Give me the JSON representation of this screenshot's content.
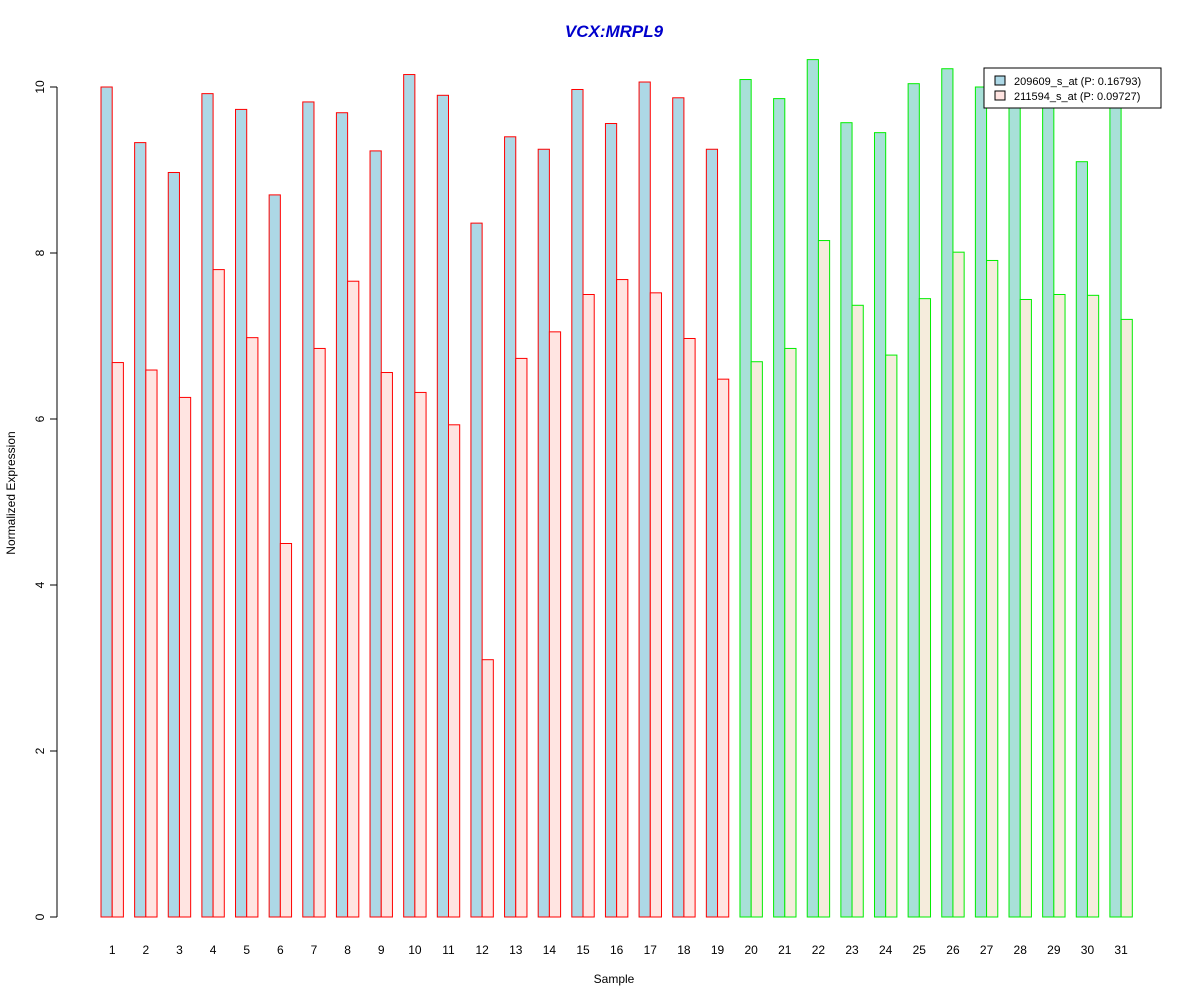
{
  "chart_data": {
    "type": "bar",
    "title": "VCX:MRPL9",
    "xlabel": "Sample",
    "ylabel": "Normalized Expression",
    "ylim": [
      0,
      10
    ],
    "y_ticks": [
      "0",
      "2",
      "4",
      "6",
      "8",
      "10"
    ],
    "grid": false,
    "legend_position": "top-right",
    "categories": [
      "1",
      "2",
      "3",
      "4",
      "5",
      "6",
      "7",
      "8",
      "9",
      "10",
      "11",
      "12",
      "13",
      "14",
      "15",
      "16",
      "17",
      "18",
      "19",
      "20",
      "21",
      "22",
      "23",
      "24",
      "25",
      "26",
      "27",
      "28",
      "29",
      "30",
      "31"
    ],
    "series": [
      {
        "name": "209609_s_at (P: 0.16793)",
        "values": [
          10.0,
          9.33,
          8.97,
          9.92,
          9.73,
          8.7,
          9.82,
          9.69,
          9.23,
          10.15,
          9.9,
          8.36,
          9.4,
          9.25,
          9.97,
          9.56,
          10.06,
          9.87,
          9.25,
          10.09,
          9.86,
          10.33,
          9.57,
          9.45,
          10.04,
          10.22,
          10.0,
          9.96,
          9.8,
          9.1,
          9.9
        ]
      },
      {
        "name": "211594_s_at (P: 0.09727)",
        "values": [
          6.68,
          6.59,
          6.26,
          7.8,
          6.98,
          4.5,
          6.85,
          7.66,
          6.56,
          6.32,
          5.93,
          3.1,
          6.73,
          7.05,
          7.5,
          7.68,
          7.52,
          6.97,
          6.48,
          6.69,
          6.85,
          8.15,
          7.37,
          6.77,
          7.45,
          8.01,
          7.91,
          7.44,
          7.5,
          7.49,
          7.2
        ]
      }
    ],
    "group_split_after": 19
  },
  "colors": {
    "title": "#0000cc",
    "series1_fill_group1": "#add8e6",
    "series2_fill_group1": "#ffe4e1",
    "series1_fill_group2": "#a8e0d8",
    "series2_fill_group2": "#f5ecdc",
    "border_group1": "#ff0000",
    "border_group2": "#00ee00"
  }
}
